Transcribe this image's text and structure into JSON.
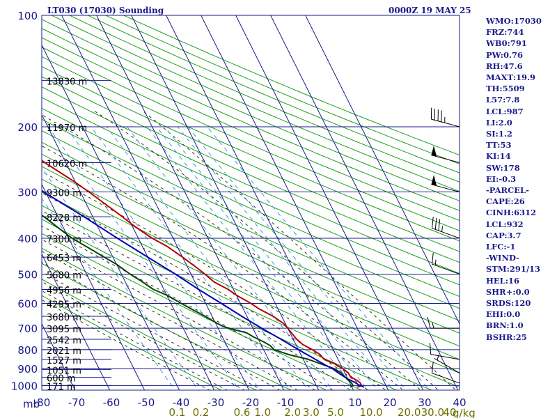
{
  "header": {
    "station": "LT030 (17030) Sounding",
    "valid_time": "0000Z 19 MAY 25"
  },
  "indices": [
    "WMO:17030",
    "FRZ:744",
    "WB0:791",
    "PW:0.76",
    "RH:47.6",
    "MAXT:19.9",
    "TH:5509",
    "L57:7.8",
    "LCL:987",
    "LI:2.0",
    "SI:1.2",
    "TT:53",
    "KI:14",
    "SW:178",
    "EI:-0.3",
    "-PARCEL-",
    "CAPE:26",
    "CINH:6312",
    "LCL:932",
    "CAP:3.7",
    "LFC:-1",
    "-WIND-",
    "STM:291/13",
    "HEL:16",
    "SHR+:0.0",
    "SRDS:120",
    "EHI:0.0",
    "BRN:1.0",
    "BSHR:25"
  ],
  "colors": {
    "grid": "#1a1a8c",
    "dry_adiabat": "#1aa01a",
    "moist_adiabat": "#3c2814",
    "mixing_ratio": "#3c96dc",
    "temperature": "#b40000",
    "dewpoint": "#004600",
    "parcel": "#0000b4",
    "tick_blue": "#1a1a8c",
    "tick_olive": "#6e6e00"
  },
  "chart_data": {
    "type": "line",
    "chart_kind": "skew-T log-P sounding",
    "title": "",
    "xlabel": "",
    "ylabel": "mb",
    "y_scale": "log pressure (inverted)",
    "pressure_ticks": [
      100,
      200,
      300,
      400,
      500,
      600,
      700,
      800,
      900,
      1000
    ],
    "temperature_ticks": [
      "-80",
      "-70",
      "-60",
      "-50",
      "-40",
      "-30",
      "-20",
      "-10",
      "0",
      "10",
      "20",
      "30",
      "40"
    ],
    "mixing_ratio_ticks": [
      "0.1",
      "0.2",
      "0.6",
      "1.0",
      "2.0",
      "3.0",
      "5.0",
      "10.0",
      "20.0",
      "30.0",
      "40"
    ],
    "mixing_ratio_unit": "g/kg",
    "height_labels": [
      {
        "p": 1000,
        "label": "171 m"
      },
      {
        "p": 950,
        "label": "600 m"
      },
      {
        "p": 905,
        "label": "1051 m"
      },
      {
        "p": 850,
        "label": "1527 m"
      },
      {
        "p": 800,
        "label": "2021 m"
      },
      {
        "p": 750,
        "label": "2542 m"
      },
      {
        "p": 700,
        "label": "3095 m"
      },
      {
        "p": 650,
        "label": "3680 m"
      },
      {
        "p": 600,
        "label": "4295 m"
      },
      {
        "p": 550,
        "label": "4956 m"
      },
      {
        "p": 500,
        "label": "5680 m"
      },
      {
        "p": 450,
        "label": "6453 m"
      },
      {
        "p": 400,
        "label": "7300 m"
      },
      {
        "p": 350,
        "label": "8228 m"
      },
      {
        "p": 300,
        "label": "9300 m"
      },
      {
        "p": 250,
        "label": "10620 m"
      },
      {
        "p": 200,
        "label": "11970 m"
      },
      {
        "p": 150,
        "label": "13830 m"
      }
    ],
    "series": [
      {
        "key": "temperature",
        "points": [
          [
            1010,
            11.5
          ],
          [
            1000,
            13.0
          ],
          [
            985,
            13.0
          ],
          [
            970,
            12.5
          ],
          [
            955,
            11.5
          ],
          [
            940,
            11.0
          ],
          [
            925,
            11.0
          ],
          [
            900,
            10.0
          ],
          [
            875,
            8.5
          ],
          [
            850,
            6.0
          ],
          [
            825,
            5.5
          ],
          [
            800,
            4.0
          ],
          [
            775,
            2.0
          ],
          [
            750,
            1.0
          ],
          [
            725,
            0.5
          ],
          [
            700,
            0.0
          ],
          [
            680,
            -0.5
          ],
          [
            650,
            -2.5
          ],
          [
            620,
            -5.5
          ],
          [
            600,
            -7.0
          ],
          [
            570,
            -10.0
          ],
          [
            550,
            -11.5
          ],
          [
            525,
            -14.5
          ],
          [
            500,
            -16.0
          ],
          [
            480,
            -17.5
          ],
          [
            450,
            -20.0
          ],
          [
            420,
            -23.0
          ],
          [
            400,
            -26.0
          ],
          [
            370,
            -29.5
          ],
          [
            350,
            -31.5
          ],
          [
            320,
            -35.0
          ],
          [
            300,
            -37.5
          ],
          [
            280,
            -40.5
          ],
          [
            250,
            -46.0
          ],
          [
            230,
            -49.5
          ],
          [
            210,
            -53.0
          ],
          [
            200,
            -51.5
          ],
          [
            195,
            -53.0
          ],
          [
            180,
            -53.0
          ],
          [
            170,
            -53.5
          ],
          [
            160,
            -54.0
          ],
          [
            150,
            -55.0
          ],
          [
            140,
            -56.0
          ],
          [
            136,
            -56.5
          ]
        ]
      },
      {
        "key": "dewpoint",
        "points": [
          [
            1010,
            9.5
          ],
          [
            1000,
            10.5
          ],
          [
            985,
            10.5
          ],
          [
            970,
            10.0
          ],
          [
            950,
            9.5
          ],
          [
            925,
            9.0
          ],
          [
            900,
            7.5
          ],
          [
            875,
            4.5
          ],
          [
            850,
            1.5
          ],
          [
            825,
            -3.5
          ],
          [
            800,
            -7.0
          ],
          [
            780,
            -7.5
          ],
          [
            760,
            -9.0
          ],
          [
            740,
            -11.0
          ],
          [
            720,
            -12.5
          ],
          [
            700,
            -17.0
          ],
          [
            690,
            -18.5
          ],
          [
            680,
            -19.5
          ],
          [
            650,
            -22.0
          ],
          [
            620,
            -25.0
          ],
          [
            600,
            -27.0
          ],
          [
            570,
            -30.0
          ],
          [
            550,
            -33.0
          ],
          [
            520,
            -35.5
          ],
          [
            500,
            -37.5
          ],
          [
            470,
            -40.0
          ],
          [
            450,
            -42.5
          ],
          [
            430,
            -45.0
          ],
          [
            400,
            -49.0
          ],
          [
            380,
            -51.0
          ],
          [
            350,
            -54.0
          ],
          [
            330,
            -57.0
          ],
          [
            310,
            -60.0
          ],
          [
            300,
            -61.0
          ]
        ]
      },
      {
        "key": "parcel",
        "points": [
          [
            1010,
            13.5
          ],
          [
            1000,
            12.5
          ],
          [
            980,
            11.5
          ],
          [
            960,
            10.0
          ],
          [
            932,
            8.5
          ],
          [
            900,
            7.0
          ],
          [
            880,
            5.5
          ],
          [
            850,
            3.5
          ],
          [
            800,
            0.0
          ],
          [
            750,
            -3.5
          ],
          [
            700,
            -7.5
          ],
          [
            650,
            -11.5
          ],
          [
            600,
            -15.5
          ],
          [
            550,
            -20.0
          ],
          [
            500,
            -24.5
          ],
          [
            450,
            -30.0
          ],
          [
            400,
            -36.0
          ],
          [
            350,
            -42.5
          ],
          [
            300,
            -50.5
          ],
          [
            250,
            -60.0
          ],
          [
            220,
            -66.0
          ],
          [
            200,
            -70.0
          ],
          [
            185,
            -74.0
          ],
          [
            175,
            -77.0
          ]
        ]
      }
    ],
    "wind_barbs": [
      {
        "p": 985,
        "dir": 290,
        "spd": 10
      },
      {
        "p": 925,
        "dir": 300,
        "spd": 5
      },
      {
        "p": 850,
        "dir": 280,
        "spd": 10
      },
      {
        "p": 700,
        "dir": 270,
        "spd": 15
      },
      {
        "p": 500,
        "dir": 290,
        "spd": 15
      },
      {
        "p": 400,
        "dir": 290,
        "spd": 35
      },
      {
        "p": 300,
        "dir": 285,
        "spd": 50
      },
      {
        "p": 250,
        "dir": 285,
        "spd": 50
      },
      {
        "p": 200,
        "dir": 285,
        "spd": 45
      }
    ]
  }
}
